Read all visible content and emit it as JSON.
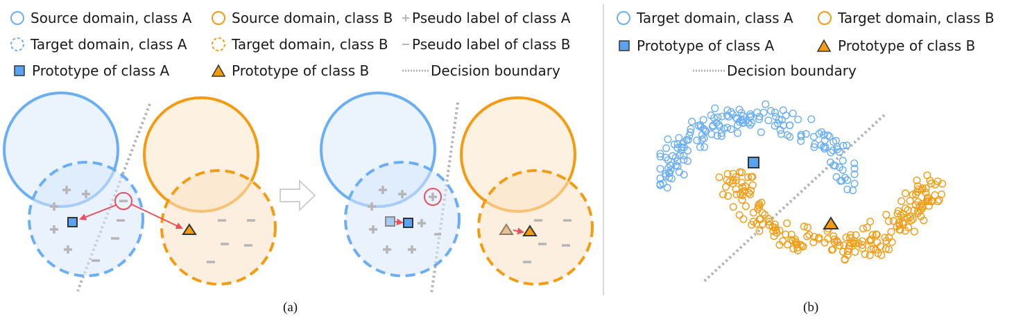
{
  "panel_a": {
    "legend": {
      "source_a": "Source domain, class A",
      "source_b": "Source domain, class B",
      "pseudo_a": "Pseudo label of class A",
      "target_a": "Target domain, class A",
      "target_b": "Target domain, class B",
      "pseudo_b": "Pseudo label of class B",
      "proto_a": "Prototype of class A",
      "proto_b": "Prototype of class B",
      "boundary": "Decision boundary"
    },
    "caption": "(a)"
  },
  "panel_b": {
    "legend": {
      "target_a": "Target domain, class A",
      "target_b": "Target domain, class B",
      "proto_a": "Prototype of class A",
      "proto_b": "Prototype of class B",
      "boundary": "Decision boundary"
    },
    "caption": "(b)"
  },
  "colors": {
    "class_a": "#6aaef5",
    "class_a_fill": "#eaf3fd",
    "class_b": "#f39c12",
    "class_b_fill": "#fdefdf",
    "pseudo": "#b5b5b5",
    "boundary": "#b3b3b3",
    "arrow": "#e8505b",
    "proto_a_fill": "#5aa3f0",
    "proto_b_fill": "#f39c12",
    "divider": "#d8d8d8"
  }
}
